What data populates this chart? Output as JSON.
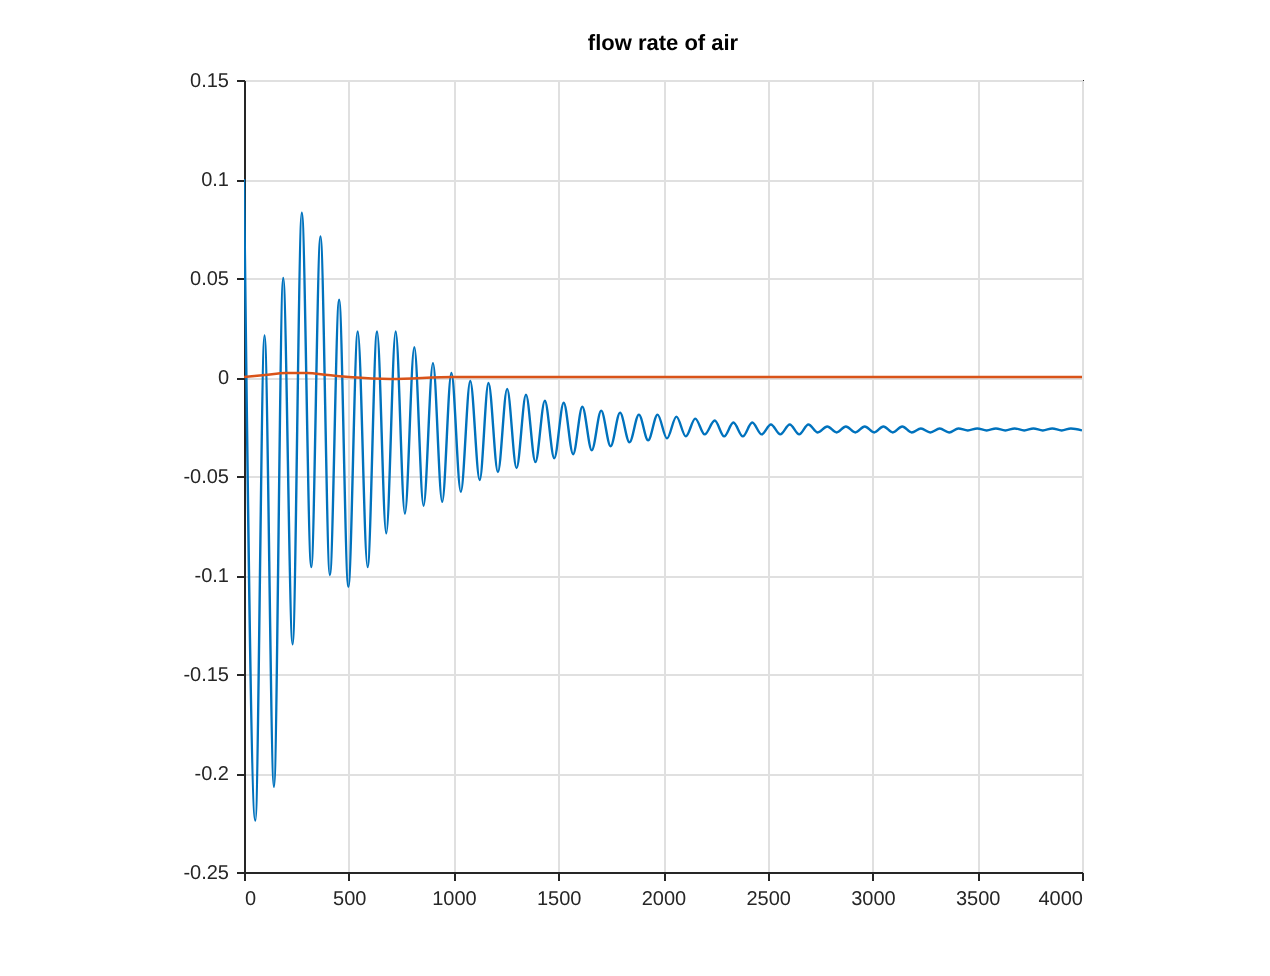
{
  "chart_data": {
    "type": "line",
    "title": "flow rate of air",
    "xlim": [
      0,
      4000
    ],
    "xticks": [
      0,
      500,
      1000,
      1500,
      2000,
      2500,
      3000,
      3500,
      4000
    ],
    "ylim": [
      -0.25,
      0.15
    ],
    "yticks": [
      -0.25,
      -0.2,
      -0.15,
      -0.1,
      -0.05,
      0,
      0.05,
      0.1,
      0.15
    ],
    "grid": true,
    "line_style": "solid",
    "marker": "none",
    "series": [
      {
        "color": "#0072bd",
        "x": [
          0,
          54,
          98,
          143,
          187,
          232,
          276,
          321,
          365,
          410,
          454,
          498,
          543,
          590,
          635,
          679,
          724,
          768,
          813,
          857,
          902,
          946,
          990,
          1035,
          1080,
          1125,
          1167,
          1212,
          1256,
          1301,
          1346,
          1391,
          1436,
          1481,
          1526,
          1571,
          1615,
          1660,
          1705,
          1750,
          1795,
          1840,
          1885,
          1929,
          1974,
          2019,
          2064,
          2109,
          2154,
          2199,
          2247,
          2292,
          2336,
          2381,
          2426,
          2471,
          2515,
          2560,
          2605,
          2650,
          2694,
          2739,
          2784,
          2829,
          2873,
          2918,
          2963,
          3008,
          3052,
          3097,
          3142,
          3187,
          3231,
          3276,
          3321,
          3366,
          3410,
          3455,
          3500,
          3545,
          3589,
          3634,
          3679,
          3724,
          3768,
          3813,
          3858,
          3903,
          3947,
          4000
        ],
        "values": [
          0.1,
          -0.224,
          0.021,
          -0.207,
          0.05,
          -0.135,
          0.083,
          -0.096,
          0.071,
          -0.1,
          0.039,
          -0.106,
          0.023,
          -0.096,
          0.023,
          -0.079,
          0.023,
          -0.069,
          0.015,
          -0.065,
          0.007,
          -0.063,
          0.002,
          -0.058,
          -0.002,
          -0.052,
          -0.003,
          -0.048,
          -0.006,
          -0.046,
          -0.009,
          -0.043,
          -0.012,
          -0.041,
          -0.013,
          -0.039,
          -0.015,
          -0.037,
          -0.017,
          -0.035,
          -0.018,
          -0.033,
          -0.019,
          -0.032,
          -0.019,
          -0.031,
          -0.02,
          -0.03,
          -0.021,
          -0.029,
          -0.022,
          -0.03,
          -0.023,
          -0.03,
          -0.023,
          -0.029,
          -0.024,
          -0.029,
          -0.024,
          -0.029,
          -0.024,
          -0.028,
          -0.025,
          -0.028,
          -0.025,
          -0.028,
          -0.025,
          -0.028,
          -0.025,
          -0.028,
          -0.025,
          -0.028,
          -0.026,
          -0.028,
          -0.026,
          -0.028,
          -0.026,
          -0.027,
          -0.026,
          -0.027,
          -0.026,
          -0.027,
          -0.026,
          -0.027,
          -0.026,
          -0.027,
          -0.026,
          -0.027,
          -0.026,
          -0.027
        ]
      },
      {
        "color": "#d95319",
        "x": [
          0,
          100,
          200,
          300,
          400,
          500,
          700,
          1000,
          4000
        ],
        "values": [
          0,
          0.001,
          0.002,
          0.002,
          0.001,
          0,
          -0.001,
          0,
          0
        ]
      }
    ]
  }
}
